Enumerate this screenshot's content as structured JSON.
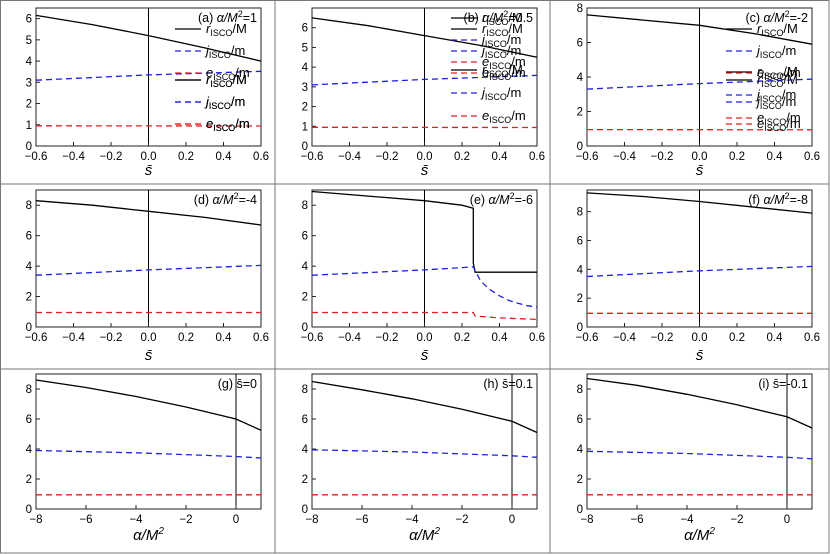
{
  "figure": {
    "legend_labels": [
      "r_ISCO/M",
      "j_ISCO/m",
      "e_ISCO/m"
    ]
  },
  "chart_data": [
    {
      "type": "line",
      "title": "(a) α/M²=1",
      "xlabel": "s̄",
      "ylabel": "",
      "xlim": [
        -0.6,
        0.6
      ],
      "ylim": [
        0,
        6.5
      ],
      "xticks": [
        -0.6,
        -0.4,
        -0.2,
        0.0,
        0.2,
        0.4,
        0.6
      ],
      "yticks": [
        0,
        1,
        2,
        3,
        4,
        5,
        6
      ],
      "x_line": 0,
      "series": [
        {
          "name": "r_ISCO/M",
          "style": "solid",
          "color": "#000000",
          "x": [
            -0.6,
            -0.3,
            0,
            0.3,
            0.6
          ],
          "y": [
            6.15,
            5.72,
            5.2,
            4.62,
            4.0
          ]
        },
        {
          "name": "j_ISCO/m",
          "style": "dashed",
          "color": "#1f1fe0",
          "x": [
            -0.6,
            0,
            0.6
          ],
          "y": [
            3.1,
            3.35,
            3.52
          ]
        },
        {
          "name": "e_ISCO/m",
          "style": "dashed",
          "color": "#e02020",
          "x": [
            -0.6,
            0.6
          ],
          "y": [
            0.95,
            0.94
          ]
        }
      ]
    },
    {
      "type": "line",
      "title": "(b) α/M²=0.5",
      "xlabel": "s̄",
      "ylabel": "",
      "xlim": [
        -0.6,
        0.6
      ],
      "ylim": [
        0,
        7
      ],
      "xticks": [
        -0.6,
        -0.4,
        -0.2,
        0.0,
        0.2,
        0.4,
        0.6
      ],
      "yticks": [
        0,
        1,
        2,
        3,
        4,
        5,
        6
      ],
      "x_line": 0,
      "series": [
        {
          "name": "r_ISCO/M",
          "style": "solid",
          "color": "#000000",
          "x": [
            -0.6,
            -0.3,
            0,
            0.3,
            0.6
          ],
          "y": [
            6.5,
            6.1,
            5.6,
            5.1,
            4.5
          ]
        },
        {
          "name": "j_ISCO/m",
          "style": "dashed",
          "color": "#1f1fe0",
          "x": [
            -0.6,
            0,
            0.6
          ],
          "y": [
            3.1,
            3.38,
            3.58
          ]
        },
        {
          "name": "e_ISCO/m",
          "style": "dashed",
          "color": "#e02020",
          "x": [
            -0.6,
            0.6
          ],
          "y": [
            0.95,
            0.94
          ]
        }
      ]
    },
    {
      "type": "line",
      "title": "(c) α/M²=-2",
      "xlabel": "s̄",
      "ylabel": "",
      "xlim": [
        -0.6,
        0.6
      ],
      "ylim": [
        0,
        8
      ],
      "xticks": [
        -0.6,
        -0.4,
        -0.2,
        0.0,
        0.2,
        0.4,
        0.6
      ],
      "yticks": [
        0,
        2,
        4,
        6,
        8
      ],
      "x_line": 0,
      "series": [
        {
          "name": "r_ISCO/M",
          "style": "solid",
          "color": "#000000",
          "x": [
            -0.6,
            -0.3,
            0,
            0.3,
            0.6
          ],
          "y": [
            7.6,
            7.3,
            7.0,
            6.5,
            5.9
          ]
        },
        {
          "name": "j_ISCO/m",
          "style": "dashed",
          "color": "#1f1fe0",
          "x": [
            -0.6,
            0,
            0.6
          ],
          "y": [
            3.3,
            3.62,
            3.88
          ]
        },
        {
          "name": "e_ISCO/m",
          "style": "dashed",
          "color": "#e02020",
          "x": [
            -0.6,
            0.6
          ],
          "y": [
            0.95,
            0.94
          ]
        }
      ]
    },
    {
      "type": "line",
      "title": "(d) α/M²=-4",
      "xlabel": "s̄",
      "ylabel": "",
      "xlim": [
        -0.6,
        0.6
      ],
      "ylim": [
        0,
        9
      ],
      "xticks": [
        -0.6,
        -0.4,
        -0.2,
        0.0,
        0.2,
        0.4,
        0.6
      ],
      "yticks": [
        0,
        2,
        4,
        6,
        8
      ],
      "x_line": 0,
      "series": [
        {
          "name": "r_ISCO/M",
          "style": "solid",
          "color": "#000000",
          "x": [
            -0.6,
            -0.3,
            0,
            0.3,
            0.6
          ],
          "y": [
            8.3,
            8.0,
            7.6,
            7.2,
            6.7
          ]
        },
        {
          "name": "j_ISCO/m",
          "style": "dashed",
          "color": "#1f1fe0",
          "x": [
            -0.6,
            0,
            0.6
          ],
          "y": [
            3.4,
            3.75,
            4.05
          ]
        },
        {
          "name": "e_ISCO/m",
          "style": "dashed",
          "color": "#e02020",
          "x": [
            -0.6,
            0.6
          ],
          "y": [
            0.95,
            0.95
          ]
        }
      ]
    },
    {
      "type": "line",
      "title": "(e) α/M²=-6",
      "xlabel": "s̄",
      "ylabel": "",
      "xlim": [
        -0.6,
        0.6
      ],
      "ylim": [
        0,
        9
      ],
      "xticks": [
        -0.6,
        -0.4,
        -0.2,
        0.0,
        0.2,
        0.4,
        0.6
      ],
      "yticks": [
        0,
        2,
        4,
        6,
        8
      ],
      "x_line": 0,
      "series": [
        {
          "name": "r_ISCO/M",
          "style": "solid",
          "color": "#000000",
          "x": [
            -0.6,
            -0.3,
            0,
            0.2,
            0.26,
            0.26,
            0.27,
            0.6
          ],
          "y": [
            8.9,
            8.6,
            8.3,
            8.0,
            7.8,
            4.2,
            3.6,
            3.6
          ]
        },
        {
          "name": "j_ISCO/m",
          "style": "dashed",
          "color": "#1f1fe0",
          "x": [
            -0.6,
            0,
            0.26,
            0.3,
            0.35,
            0.4,
            0.45,
            0.5,
            0.55,
            0.6
          ],
          "y": [
            3.4,
            3.75,
            3.95,
            3.0,
            2.45,
            2.05,
            1.75,
            1.55,
            1.4,
            1.3
          ]
        },
        {
          "name": "e_ISCO/m",
          "style": "dashed",
          "color": "#e02020",
          "x": [
            -0.6,
            0.26,
            0.27,
            0.4,
            0.6
          ],
          "y": [
            0.95,
            0.95,
            0.72,
            0.6,
            0.5
          ]
        }
      ]
    },
    {
      "type": "line",
      "title": "(f) α/M²=-8",
      "xlabel": "s̄",
      "ylabel": "",
      "xlim": [
        -0.6,
        0.6
      ],
      "ylim": [
        0,
        9.5
      ],
      "xticks": [
        -0.6,
        -0.4,
        -0.2,
        0.0,
        0.2,
        0.4,
        0.6
      ],
      "yticks": [
        0,
        2,
        4,
        6,
        8
      ],
      "x_line": 0,
      "series": [
        {
          "name": "r_ISCO/M",
          "style": "solid",
          "color": "#000000",
          "x": [
            -0.6,
            -0.3,
            0,
            0.3,
            0.6
          ],
          "y": [
            9.3,
            9.05,
            8.7,
            8.3,
            7.9
          ]
        },
        {
          "name": "j_ISCO/m",
          "style": "dashed",
          "color": "#1f1fe0",
          "x": [
            -0.6,
            0,
            0.6
          ],
          "y": [
            3.5,
            3.9,
            4.2
          ]
        },
        {
          "name": "e_ISCO/m",
          "style": "dashed",
          "color": "#e02020",
          "x": [
            -0.6,
            0.6
          ],
          "y": [
            0.95,
            0.95
          ]
        }
      ]
    },
    {
      "type": "line",
      "title": "(g) s̄=0",
      "xlabel": "α/M²",
      "ylabel": "",
      "xlim": [
        -8,
        1
      ],
      "ylim": [
        0,
        9
      ],
      "xticks": [
        -8,
        -6,
        -4,
        -2,
        0
      ],
      "yticks": [
        0,
        2,
        4,
        6,
        8
      ],
      "x_line": 0,
      "series": [
        {
          "name": "r_ISCO/M",
          "style": "solid",
          "color": "#000000",
          "x": [
            -8,
            -6,
            -4,
            -2,
            0,
            1
          ],
          "y": [
            8.6,
            8.1,
            7.5,
            6.8,
            6.0,
            5.25
          ]
        },
        {
          "name": "j_ISCO/m",
          "style": "dashed",
          "color": "#1f1fe0",
          "x": [
            -8,
            -4,
            0,
            1
          ],
          "y": [
            3.9,
            3.75,
            3.5,
            3.4
          ]
        },
        {
          "name": "e_ISCO/m",
          "style": "dashed",
          "color": "#e02020",
          "x": [
            -8,
            1
          ],
          "y": [
            0.95,
            0.95
          ]
        }
      ]
    },
    {
      "type": "line",
      "title": "(h) s̄=0.1",
      "xlabel": "α/M²",
      "ylabel": "",
      "xlim": [
        -8,
        1
      ],
      "ylim": [
        0,
        9
      ],
      "xticks": [
        -8,
        -6,
        -4,
        -2,
        0
      ],
      "yticks": [
        0,
        2,
        4,
        6,
        8
      ],
      "x_line": 0,
      "series": [
        {
          "name": "r_ISCO/M",
          "style": "solid",
          "color": "#000000",
          "x": [
            -8,
            -6,
            -4,
            -2,
            0,
            1
          ],
          "y": [
            8.5,
            7.95,
            7.35,
            6.65,
            5.85,
            5.1
          ]
        },
        {
          "name": "j_ISCO/m",
          "style": "dashed",
          "color": "#1f1fe0",
          "x": [
            -8,
            -4,
            0,
            1
          ],
          "y": [
            3.95,
            3.8,
            3.55,
            3.45
          ]
        },
        {
          "name": "e_ISCO/m",
          "style": "dashed",
          "color": "#e02020",
          "x": [
            -8,
            1
          ],
          "y": [
            0.95,
            0.95
          ]
        }
      ]
    },
    {
      "type": "line",
      "title": "(i) s̄=-0.1",
      "xlabel": "α/M²",
      "ylabel": "",
      "xlim": [
        -8,
        1
      ],
      "ylim": [
        0,
        9
      ],
      "xticks": [
        -8,
        -6,
        -4,
        -2,
        0
      ],
      "yticks": [
        0,
        2,
        4,
        6,
        8
      ],
      "x_line": 0,
      "series": [
        {
          "name": "r_ISCO/M",
          "style": "solid",
          "color": "#000000",
          "x": [
            -8,
            -6,
            -4,
            -2,
            0,
            1
          ],
          "y": [
            8.7,
            8.25,
            7.65,
            6.95,
            6.15,
            5.4
          ]
        },
        {
          "name": "j_ISCO/m",
          "style": "dashed",
          "color": "#1f1fe0",
          "x": [
            -8,
            -4,
            0,
            1
          ],
          "y": [
            3.85,
            3.7,
            3.45,
            3.35
          ]
        },
        {
          "name": "e_ISCO/m",
          "style": "dashed",
          "color": "#e02020",
          "x": [
            -8,
            1
          ],
          "y": [
            0.95,
            0.95
          ]
        }
      ]
    }
  ]
}
